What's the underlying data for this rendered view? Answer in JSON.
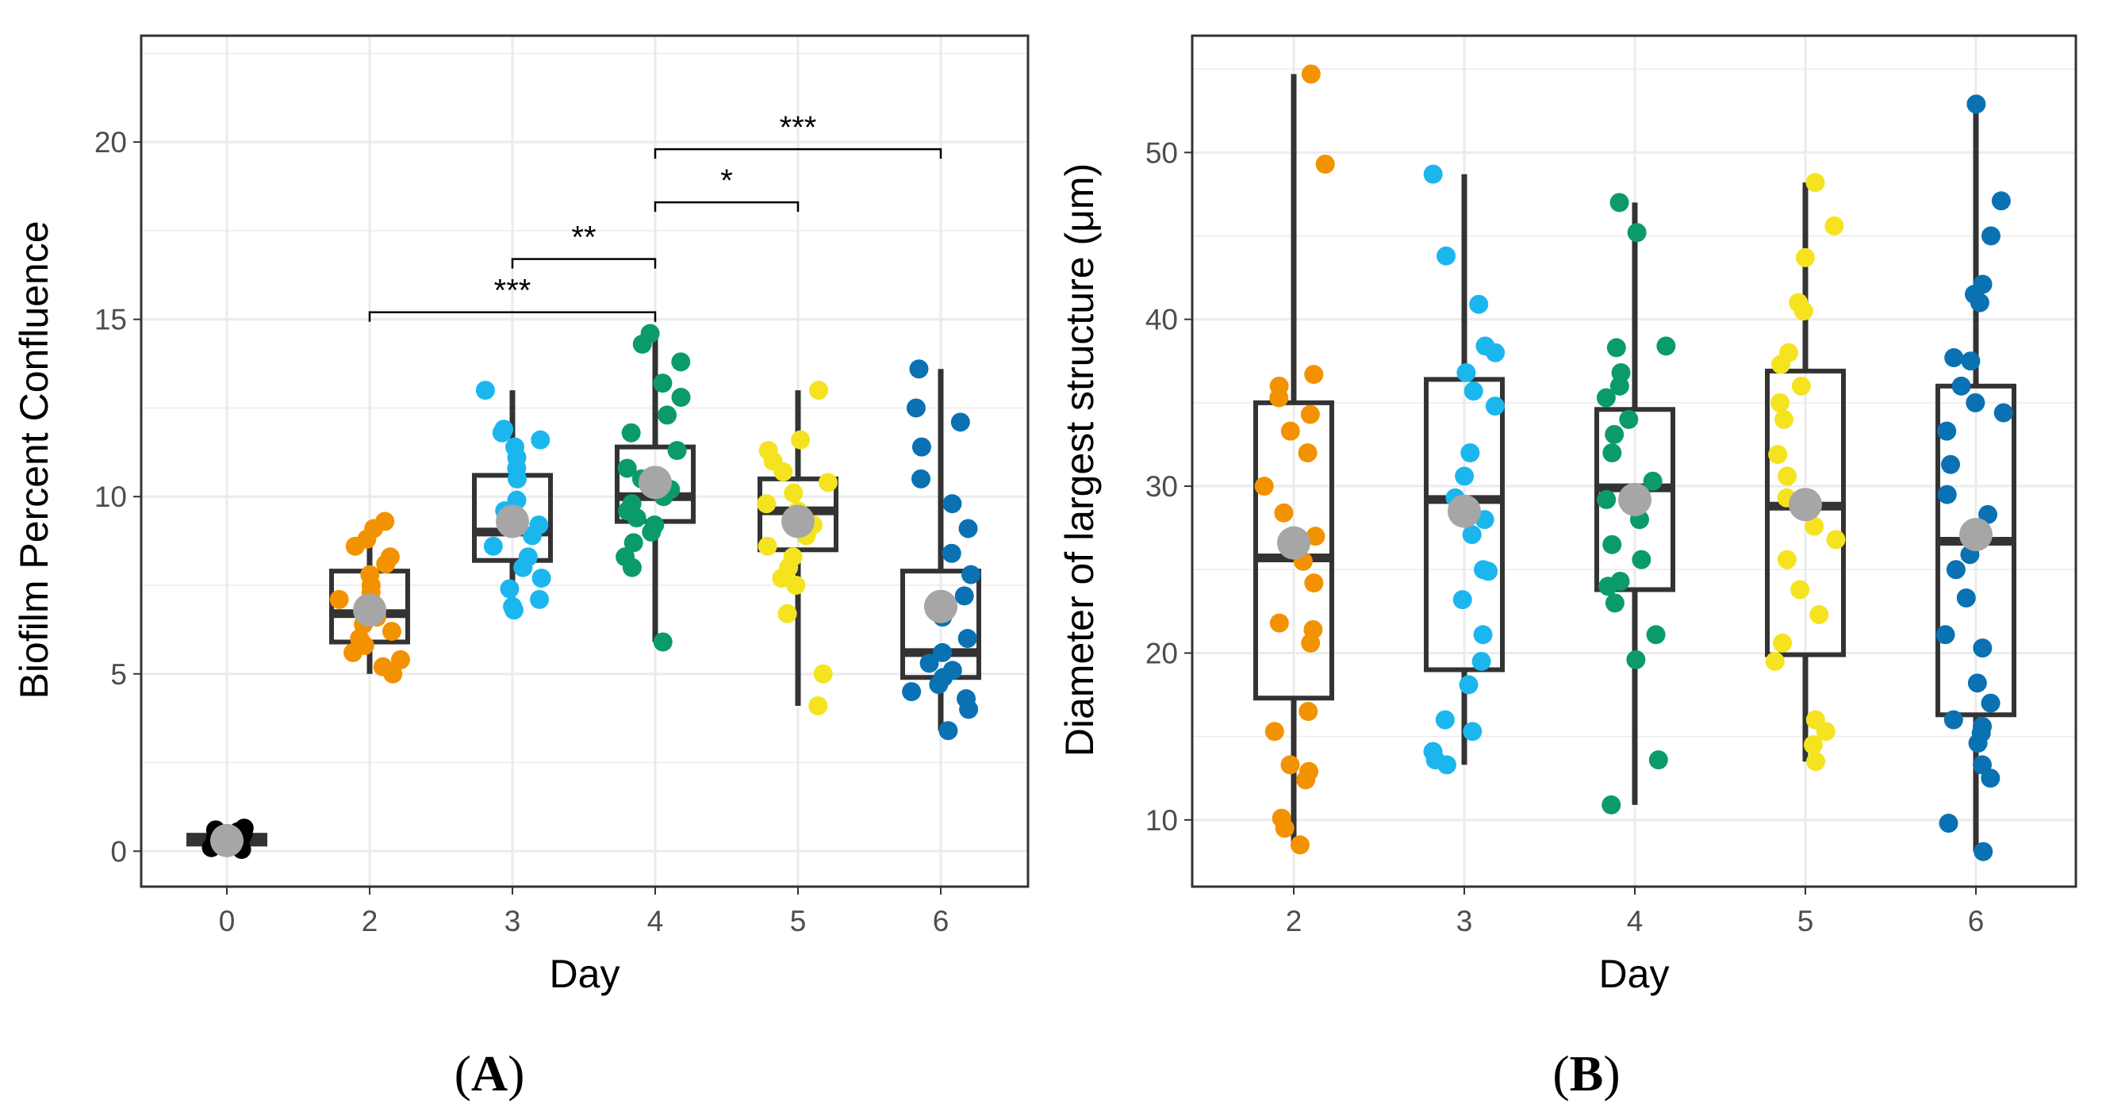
{
  "colors": {
    "day0": "#000000",
    "day2": "#f39200",
    "day3": "#1cb6ef",
    "day4": "#0b9b6b",
    "day5": "#f5e31f",
    "day6": "#0a71b3",
    "mean": "#a6a6a6",
    "box": "#333333",
    "grid": "#ebebeb",
    "border": "#333333"
  },
  "chart_data": [
    {
      "panel_label": "(A)",
      "type": "boxplot-jitter",
      "xlabel": "Day",
      "ylabel": "Biofilm Percent Confluence",
      "ylim": [
        -1,
        23
      ],
      "yticks": [
        "0",
        "5",
        "10",
        "15",
        "20"
      ],
      "categories": [
        "0",
        "2",
        "3",
        "4",
        "5",
        "6"
      ],
      "groups": [
        {
          "day": "0",
          "q1": 0.2,
          "median": 0.35,
          "q3": 0.45,
          "lower": 0.05,
          "upper": 0.65,
          "mean": 0.3,
          "points": [
            0.05,
            0.1,
            0.15,
            0.2,
            0.25,
            0.3,
            0.35,
            0.4,
            0.45,
            0.5,
            0.55,
            0.6,
            0.65,
            0.2,
            0.3,
            0.4
          ]
        },
        {
          "day": "2",
          "q1": 5.9,
          "median": 6.7,
          "q3": 7.9,
          "lower": 5.0,
          "upper": 9.3,
          "mean": 6.8,
          "points": [
            9.3,
            9.1,
            8.8,
            8.6,
            8.3,
            8.1,
            7.8,
            7.5,
            7.3,
            7.1,
            6.9,
            6.6,
            6.4,
            6.2,
            6.0,
            5.8,
            5.6,
            5.4,
            5.2,
            5.0
          ]
        },
        {
          "day": "3",
          "q1": 8.2,
          "median": 9.0,
          "q3": 10.6,
          "lower": 6.8,
          "upper": 13.0,
          "mean": 9.3,
          "points": [
            13.0,
            11.9,
            11.8,
            11.6,
            11.4,
            11.1,
            10.8,
            10.5,
            9.9,
            9.6,
            9.2,
            8.9,
            8.6,
            8.3,
            8.0,
            7.7,
            7.4,
            7.1,
            6.9,
            6.8
          ]
        },
        {
          "day": "4",
          "q1": 9.3,
          "median": 10.0,
          "q3": 11.4,
          "lower": 5.9,
          "upper": 14.6,
          "mean": 10.4,
          "points": [
            14.6,
            14.3,
            13.8,
            13.2,
            12.8,
            12.3,
            11.8,
            11.3,
            10.8,
            10.5,
            10.2,
            10.0,
            9.8,
            9.6,
            9.4,
            9.2,
            9.0,
            8.7,
            8.3,
            8.0,
            5.9
          ]
        },
        {
          "day": "5",
          "q1": 8.5,
          "median": 9.6,
          "q3": 10.5,
          "lower": 4.1,
          "upper": 13.0,
          "mean": 9.3,
          "points": [
            13.0,
            11.6,
            11.3,
            11.0,
            10.7,
            10.4,
            10.1,
            9.8,
            9.6,
            9.4,
            9.2,
            8.9,
            8.6,
            8.3,
            8.0,
            7.7,
            7.5,
            6.7,
            5.0,
            4.1
          ]
        },
        {
          "day": "6",
          "q1": 4.9,
          "median": 5.6,
          "q3": 7.9,
          "lower": 3.4,
          "upper": 13.6,
          "mean": 6.9,
          "points": [
            13.6,
            12.5,
            12.1,
            11.4,
            10.5,
            9.8,
            9.1,
            8.4,
            7.8,
            7.2,
            6.6,
            6.0,
            5.6,
            5.3,
            5.1,
            4.9,
            4.7,
            4.5,
            4.3,
            4.0,
            3.4
          ]
        }
      ],
      "significance": [
        {
          "from": "2",
          "to": "4",
          "y": 15.2,
          "label": "***"
        },
        {
          "from": "3",
          "to": "4",
          "y": 16.7,
          "label": "**"
        },
        {
          "from": "4",
          "to": "5",
          "y": 18.3,
          "label": "*"
        },
        {
          "from": "4",
          "to": "6",
          "y": 19.8,
          "label": "***"
        }
      ]
    },
    {
      "panel_label": "(B)",
      "type": "boxplot-jitter",
      "xlabel": "Day",
      "ylabel": "Diameter of largest structure (μm)",
      "ylim": [
        6,
        57
      ],
      "yticks": [
        "10",
        "20",
        "30",
        "40",
        "50"
      ],
      "categories": [
        "2",
        "3",
        "4",
        "5",
        "6"
      ],
      "groups": [
        {
          "day": "2",
          "q1": 17.3,
          "median": 25.7,
          "q3": 35.0,
          "lower": 8.5,
          "upper": 54.7,
          "mean": 26.6,
          "points": [
            54.7,
            49.3,
            36.7,
            36.0,
            35.3,
            34.3,
            33.3,
            32.0,
            30.0,
            28.4,
            27.0,
            25.5,
            24.2,
            21.8,
            21.4,
            20.6,
            16.5,
            15.3,
            13.3,
            12.9,
            12.4,
            10.1,
            9.5,
            8.5
          ]
        },
        {
          "day": "3",
          "q1": 19.0,
          "median": 29.2,
          "q3": 36.4,
          "lower": 13.3,
          "upper": 48.7,
          "mean": 28.5,
          "points": [
            48.7,
            43.8,
            40.9,
            38.4,
            38.0,
            36.8,
            35.7,
            34.8,
            32.0,
            30.6,
            29.3,
            28.0,
            27.1,
            25.0,
            24.9,
            23.2,
            21.1,
            19.5,
            18.1,
            16.0,
            15.3,
            14.1,
            13.6,
            13.3
          ]
        },
        {
          "day": "4",
          "q1": 23.8,
          "median": 29.9,
          "q3": 34.6,
          "lower": 10.9,
          "upper": 47.0,
          "mean": 29.2,
          "points": [
            47.0,
            45.2,
            38.4,
            38.3,
            36.8,
            36.0,
            35.3,
            34.0,
            33.1,
            32.0,
            30.3,
            29.2,
            28.0,
            26.5,
            25.6,
            24.3,
            24.0,
            23.0,
            21.1,
            19.6,
            13.6,
            10.9
          ]
        },
        {
          "day": "5",
          "q1": 19.9,
          "median": 28.8,
          "q3": 36.9,
          "lower": 13.5,
          "upper": 48.2,
          "mean": 28.9,
          "points": [
            48.2,
            45.6,
            43.7,
            41.0,
            40.5,
            38.0,
            37.3,
            36.0,
            35.0,
            34.0,
            31.9,
            30.6,
            29.3,
            27.6,
            26.8,
            25.6,
            23.8,
            22.3,
            20.6,
            19.5,
            16.0,
            15.3,
            14.5,
            13.5
          ]
        },
        {
          "day": "6",
          "q1": 16.3,
          "median": 26.7,
          "q3": 36.0,
          "lower": 8.1,
          "upper": 52.9,
          "mean": 27.1,
          "points": [
            52.9,
            47.1,
            45.0,
            42.1,
            41.5,
            41.0,
            37.7,
            37.5,
            36.0,
            35.0,
            34.4,
            33.3,
            31.3,
            29.5,
            28.3,
            25.9,
            25.0,
            23.3,
            21.1,
            20.3,
            18.2,
            17.0,
            16.0,
            15.6,
            15.2,
            14.6,
            13.3,
            12.5,
            9.8,
            8.1
          ]
        }
      ]
    }
  ]
}
